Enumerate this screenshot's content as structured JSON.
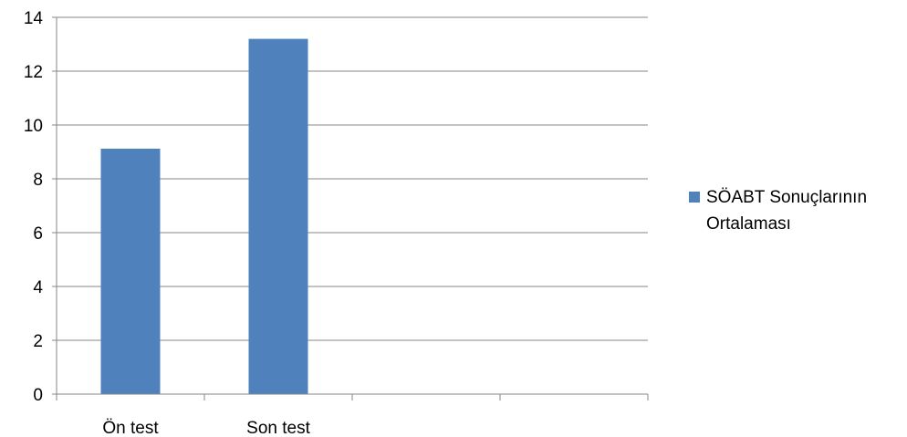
{
  "chart_data": {
    "type": "bar",
    "categories": [
      "Ön test",
      "Son test",
      "",
      ""
    ],
    "series": [
      {
        "name": "SÖABT Sonuçlarının Ortalaması",
        "values": [
          9.12,
          13.2,
          null,
          null
        ],
        "color": "#4F81BD"
      }
    ],
    "y_ticks": [
      "0",
      "2",
      "4",
      "6",
      "8",
      "10",
      "12",
      "14"
    ],
    "ylim": [
      0,
      14
    ],
    "title": "",
    "xlabel": "",
    "ylabel": "",
    "grid": true,
    "legend_position": "right"
  }
}
